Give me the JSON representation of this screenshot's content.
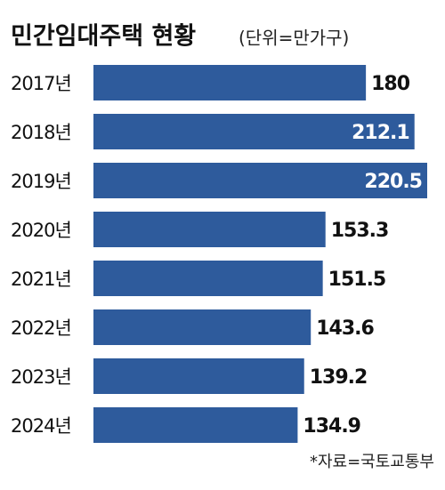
{
  "chart_data": {
    "type": "bar",
    "orientation": "horizontal",
    "title": "민간임대주택 현황",
    "subtitle": "(단위=만가구)",
    "source": "*자료=국토교통부",
    "categories": [
      "2017년",
      "2018년",
      "2019년",
      "2020년",
      "2021년",
      "2022년",
      "2023년",
      "2024년"
    ],
    "values": [
      180,
      212.1,
      220.5,
      153.3,
      151.5,
      143.6,
      139.2,
      134.9
    ],
    "color": "#2e5b9c"
  }
}
